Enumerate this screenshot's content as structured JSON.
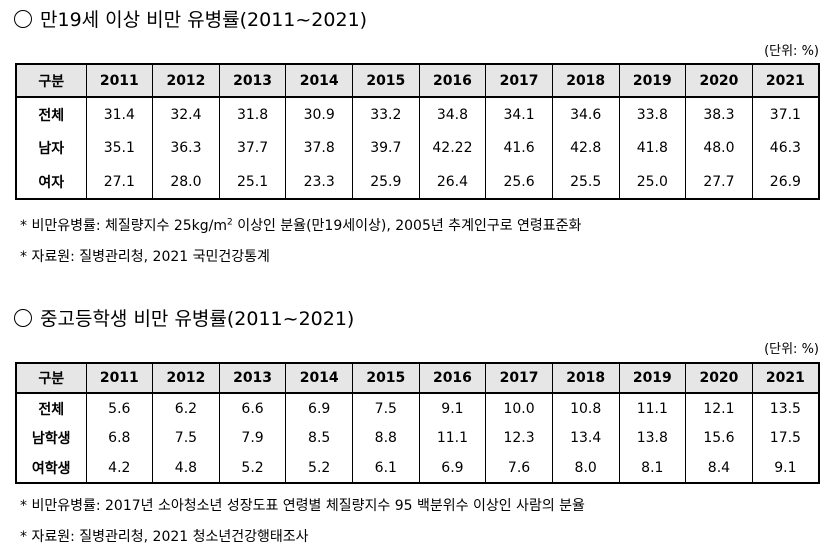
{
  "adult": {
    "title": "만19세 이상 비만 유병률(2011~2021)",
    "unit": "(단위: %)",
    "header": [
      "구분",
      "2011",
      "2012",
      "2013",
      "2014",
      "2015",
      "2016",
      "2017",
      "2018",
      "2019",
      "2020",
      "2021"
    ],
    "rows": [
      {
        "label": "전체",
        "values": [
          "31.4",
          "32.4",
          "31.8",
          "30.9",
          "33.2",
          "34.8",
          "34.1",
          "34.6",
          "33.8",
          "38.3",
          "37.1"
        ]
      },
      {
        "label": "남자",
        "values": [
          "35.1",
          "36.3",
          "37.7",
          "37.8",
          "39.7",
          "42.22",
          "41.6",
          "42.8",
          "41.8",
          "48.0",
          "46.3"
        ]
      },
      {
        "label": "여자",
        "values": [
          "27.1",
          "28.0",
          "25.1",
          "23.3",
          "25.9",
          "26.4",
          "25.6",
          "25.5",
          "25.0",
          "27.7",
          "26.9"
        ]
      }
    ],
    "note1_pre": "* 비만유병률: 체질량지수 25kg/m",
    "note1_sup": "2",
    "note1_post": " 이상인 분율(만19세이상), 2005년 추계인구로 연령표준화",
    "note2": "* 자료원: 질병관리청, 2021 국민건강통계"
  },
  "youth": {
    "title": "중고등학생 비만 유병률(2011~2021)",
    "unit": "(단위: %)",
    "header": [
      "구분",
      "2011",
      "2012",
      "2013",
      "2014",
      "2015",
      "2016",
      "2017",
      "2018",
      "2019",
      "2020",
      "2021"
    ],
    "rows": [
      {
        "label": "전체",
        "values": [
          "5.6",
          "6.2",
          "6.6",
          "6.9",
          "7.5",
          "9.1",
          "10.0",
          "10.8",
          "11.1",
          "12.1",
          "13.5"
        ]
      },
      {
        "label": "남학생",
        "values": [
          "6.8",
          "7.5",
          "7.9",
          "8.5",
          "8.8",
          "11.1",
          "12.3",
          "13.4",
          "13.8",
          "15.6",
          "17.5"
        ]
      },
      {
        "label": "여학생",
        "values": [
          "4.2",
          "4.8",
          "5.2",
          "5.2",
          "6.1",
          "6.9",
          "7.6",
          "8.0",
          "8.1",
          "8.4",
          "9.1"
        ]
      }
    ],
    "note1": "* 비만유병률: 2017년 소아청소년 성장도표 연령별 체질량지수 95 백분위수 이상인 사람의 분율",
    "note2": "* 자료원: 질병관리청, 2021 청소년건강행태조사"
  }
}
